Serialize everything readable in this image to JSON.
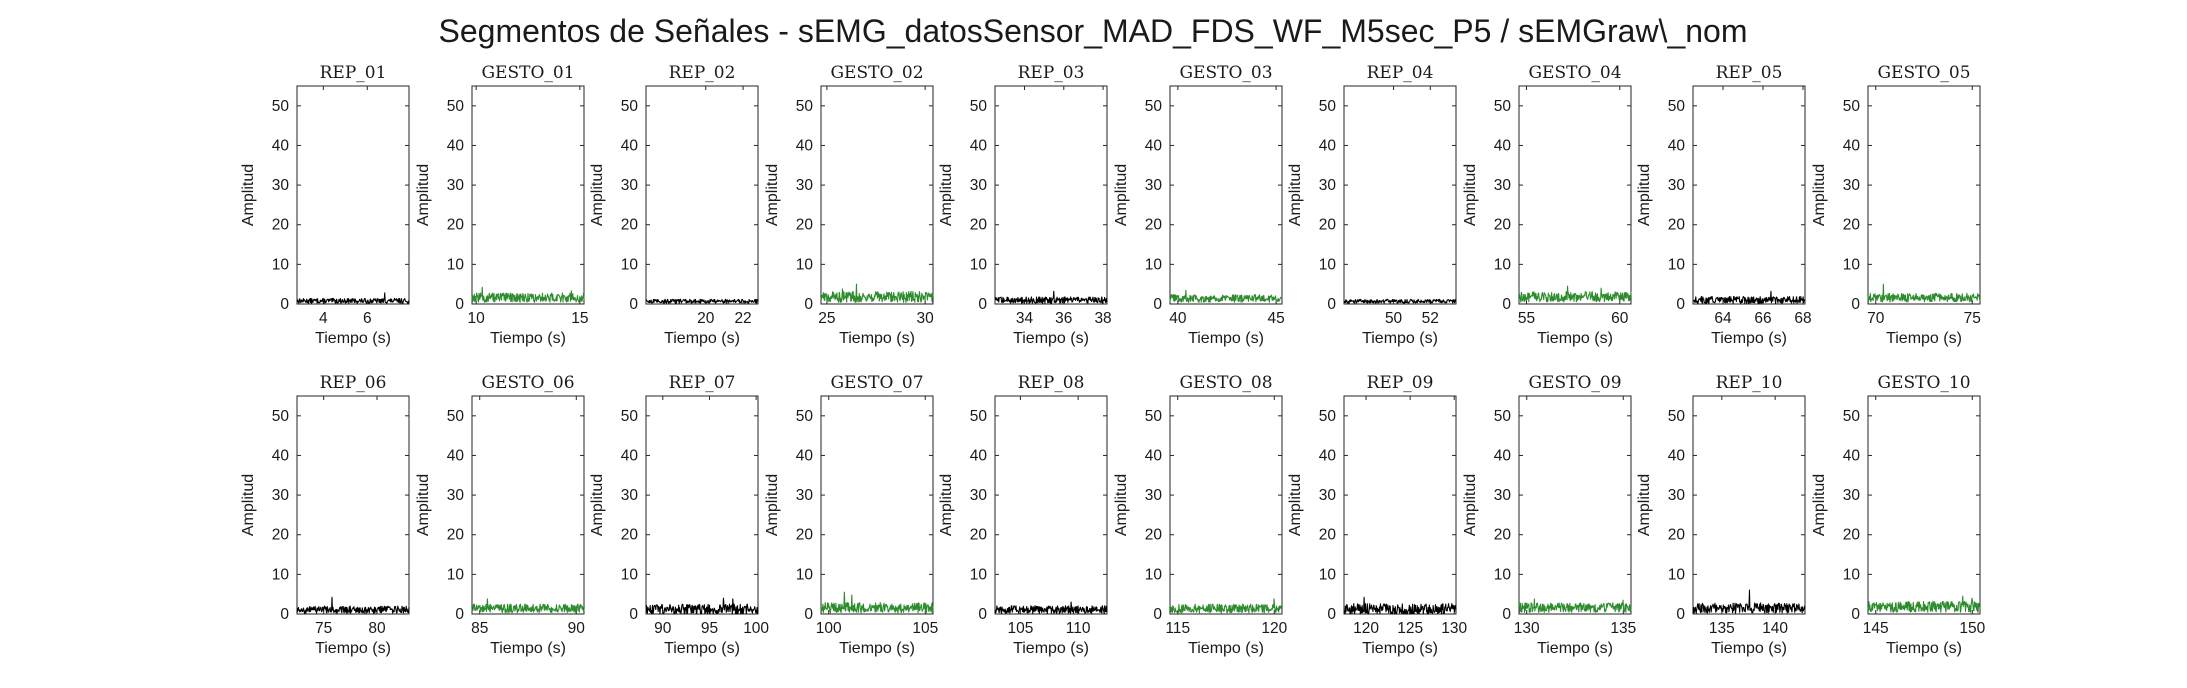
{
  "figure": {
    "title": "Segmentos de Señales - sEMG_datosSensor_MAD_FDS_WF_M5sec_P5 / sEMGraw\\_nom"
  },
  "colors": {
    "rep": "#000000",
    "gesto": "#2e8b2e",
    "axes": "#262626"
  },
  "chart_data": [
    {
      "type": "line",
      "title": "REP_01",
      "kind": "rep",
      "xlim": [
        2.8,
        7.9
      ],
      "xticks": [
        4,
        6
      ],
      "ylim": [
        0,
        55
      ],
      "yticks": [
        0,
        10,
        20,
        30,
        40,
        50
      ],
      "xlabel": "Tiempo (s)",
      "ylabel": "Amplitud",
      "series": [
        {
          "baseline": 0.8,
          "noise": 0.6,
          "peaks": [
            {
              "x": 6.8,
              "y": 2.8
            }
          ]
        }
      ]
    },
    {
      "type": "line",
      "title": "GESTO_01",
      "kind": "gesto",
      "xlim": [
        9.8,
        15.2
      ],
      "xticks": [
        10,
        15
      ],
      "ylim": [
        0,
        55
      ],
      "yticks": [
        0,
        10,
        20,
        30,
        40,
        50
      ],
      "xlabel": "Tiempo (s)",
      "ylabel": "Amplitud",
      "series": [
        {
          "baseline": 1.6,
          "noise": 1.2,
          "peaks": [
            {
              "x": 10.3,
              "y": 4.2
            },
            {
              "x": 14.6,
              "y": 3.3
            }
          ]
        }
      ]
    },
    {
      "type": "line",
      "title": "REP_02",
      "kind": "rep",
      "xlim": [
        16.8,
        22.8
      ],
      "xticks": [
        20,
        22
      ],
      "ylim": [
        0,
        55
      ],
      "yticks": [
        0,
        10,
        20,
        30,
        40,
        50
      ],
      "xlabel": "Tiempo (s)",
      "ylabel": "Amplitud",
      "series": [
        {
          "baseline": 0.7,
          "noise": 0.5,
          "peaks": []
        }
      ]
    },
    {
      "type": "line",
      "title": "GESTO_02",
      "kind": "gesto",
      "xlim": [
        24.7,
        30.4
      ],
      "xticks": [
        25,
        30
      ],
      "ylim": [
        0,
        55
      ],
      "yticks": [
        0,
        10,
        20,
        30,
        40,
        50
      ],
      "xlabel": "Tiempo (s)",
      "ylabel": "Amplitud",
      "series": [
        {
          "baseline": 1.8,
          "noise": 1.4,
          "peaks": [
            {
              "x": 26.5,
              "y": 5.0
            },
            {
              "x": 25.8,
              "y": 3.8
            }
          ]
        }
      ]
    },
    {
      "type": "line",
      "title": "REP_03",
      "kind": "rep",
      "xlim": [
        32.5,
        38.2
      ],
      "xticks": [
        34,
        36,
        38
      ],
      "ylim": [
        0,
        55
      ],
      "yticks": [
        0,
        10,
        20,
        30,
        40,
        50
      ],
      "xlabel": "Tiempo (s)",
      "ylabel": "Amplitud",
      "series": [
        {
          "baseline": 1.0,
          "noise": 0.8,
          "peaks": [
            {
              "x": 35.5,
              "y": 3.2
            }
          ]
        }
      ]
    },
    {
      "type": "line",
      "title": "GESTO_03",
      "kind": "gesto",
      "xlim": [
        39.6,
        45.3
      ],
      "xticks": [
        40,
        45
      ],
      "ylim": [
        0,
        55
      ],
      "yticks": [
        0,
        10,
        20,
        30,
        40,
        50
      ],
      "xlabel": "Tiempo (s)",
      "ylabel": "Amplitud",
      "series": [
        {
          "baseline": 1.4,
          "noise": 1.0,
          "peaks": [
            {
              "x": 40.4,
              "y": 3.5
            }
          ]
        }
      ]
    },
    {
      "type": "line",
      "title": "REP_04",
      "kind": "rep",
      "xlim": [
        47.3,
        53.4
      ],
      "xticks": [
        50,
        52
      ],
      "ylim": [
        0,
        55
      ],
      "yticks": [
        0,
        10,
        20,
        30,
        40,
        50
      ],
      "xlabel": "Tiempo (s)",
      "ylabel": "Amplitud",
      "series": [
        {
          "baseline": 0.7,
          "noise": 0.5,
          "peaks": []
        }
      ]
    },
    {
      "type": "line",
      "title": "GESTO_04",
      "kind": "gesto",
      "xlim": [
        54.6,
        60.6
      ],
      "xticks": [
        55,
        60
      ],
      "ylim": [
        0,
        55
      ],
      "yticks": [
        0,
        10,
        20,
        30,
        40,
        50
      ],
      "xlabel": "Tiempo (s)",
      "ylabel": "Amplitud",
      "series": [
        {
          "baseline": 1.8,
          "noise": 1.3,
          "peaks": [
            {
              "x": 57.2,
              "y": 4.5
            },
            {
              "x": 59.0,
              "y": 4.0
            }
          ]
        }
      ]
    },
    {
      "type": "line",
      "title": "REP_05",
      "kind": "rep",
      "xlim": [
        62.5,
        68.1
      ],
      "xticks": [
        64,
        66,
        68
      ],
      "ylim": [
        0,
        55
      ],
      "yticks": [
        0,
        10,
        20,
        30,
        40,
        50
      ],
      "xlabel": "Tiempo (s)",
      "ylabel": "Amplitud",
      "series": [
        {
          "baseline": 1.0,
          "noise": 0.9,
          "peaks": [
            {
              "x": 66.4,
              "y": 3.2
            }
          ]
        }
      ]
    },
    {
      "type": "line",
      "title": "GESTO_05",
      "kind": "gesto",
      "xlim": [
        69.6,
        75.4
      ],
      "xticks": [
        70,
        75
      ],
      "ylim": [
        0,
        55
      ],
      "yticks": [
        0,
        10,
        20,
        30,
        40,
        50
      ],
      "xlabel": "Tiempo (s)",
      "ylabel": "Amplitud",
      "series": [
        {
          "baseline": 1.6,
          "noise": 1.1,
          "peaks": [
            {
              "x": 70.4,
              "y": 5.0
            }
          ]
        }
      ]
    },
    {
      "type": "line",
      "title": "REP_06",
      "kind": "rep",
      "xlim": [
        72.5,
        83.0
      ],
      "xticks": [
        75,
        80
      ],
      "ylim": [
        0,
        55
      ],
      "yticks": [
        0,
        10,
        20,
        30,
        40,
        50
      ],
      "xlabel": "Tiempo (s)",
      "ylabel": "Amplitud",
      "series": [
        {
          "baseline": 1.1,
          "noise": 0.9,
          "peaks": [
            {
              "x": 75.8,
              "y": 4.2
            }
          ]
        }
      ]
    },
    {
      "type": "line",
      "title": "GESTO_06",
      "kind": "gesto",
      "xlim": [
        84.6,
        90.4
      ],
      "xticks": [
        85,
        90
      ],
      "ylim": [
        0,
        55
      ],
      "yticks": [
        0,
        10,
        20,
        30,
        40,
        50
      ],
      "xlabel": "Tiempo (s)",
      "ylabel": "Amplitud",
      "series": [
        {
          "baseline": 1.4,
          "noise": 1.1,
          "peaks": [
            {
              "x": 85.4,
              "y": 3.8
            }
          ]
        }
      ]
    },
    {
      "type": "line",
      "title": "REP_07",
      "kind": "rep",
      "xlim": [
        88.2,
        100.2
      ],
      "xticks": [
        90,
        95,
        100
      ],
      "ylim": [
        0,
        55
      ],
      "yticks": [
        0,
        10,
        20,
        30,
        40,
        50
      ],
      "xlabel": "Tiempo (s)",
      "ylabel": "Amplitud",
      "series": [
        {
          "baseline": 1.2,
          "noise": 1.3,
          "peaks": [
            {
              "x": 96.5,
              "y": 4.0
            },
            {
              "x": 97.5,
              "y": 3.8
            }
          ]
        }
      ]
    },
    {
      "type": "line",
      "title": "GESTO_07",
      "kind": "gesto",
      "xlim": [
        99.6,
        105.4
      ],
      "xticks": [
        100,
        105
      ],
      "ylim": [
        0,
        55
      ],
      "yticks": [
        0,
        10,
        20,
        30,
        40,
        50
      ],
      "xlabel": "Tiempo (s)",
      "ylabel": "Amplitud",
      "series": [
        {
          "baseline": 1.6,
          "noise": 1.3,
          "peaks": [
            {
              "x": 100.8,
              "y": 5.5
            },
            {
              "x": 101.2,
              "y": 4.8
            }
          ]
        }
      ]
    },
    {
      "type": "line",
      "title": "REP_08",
      "kind": "rep",
      "xlim": [
        102.8,
        112.5
      ],
      "xticks": [
        105,
        110
      ],
      "ylim": [
        0,
        55
      ],
      "yticks": [
        0,
        10,
        20,
        30,
        40,
        50
      ],
      "xlabel": "Tiempo (s)",
      "ylabel": "Amplitud",
      "series": [
        {
          "baseline": 1.1,
          "noise": 1.0,
          "peaks": [
            {
              "x": 109.4,
              "y": 3.0
            }
          ]
        }
      ]
    },
    {
      "type": "line",
      "title": "GESTO_08",
      "kind": "gesto",
      "xlim": [
        114.6,
        120.4
      ],
      "xticks": [
        115,
        120
      ],
      "ylim": [
        0,
        55
      ],
      "yticks": [
        0,
        10,
        20,
        30,
        40,
        50
      ],
      "xlabel": "Tiempo (s)",
      "ylabel": "Amplitud",
      "series": [
        {
          "baseline": 1.4,
          "noise": 1.1,
          "peaks": [
            {
              "x": 120.0,
              "y": 3.8
            }
          ]
        }
      ]
    },
    {
      "type": "line",
      "title": "REP_09",
      "kind": "rep",
      "xlim": [
        117.5,
        130.2
      ],
      "xticks": [
        120,
        125,
        130
      ],
      "ylim": [
        0,
        55
      ],
      "yticks": [
        0,
        10,
        20,
        30,
        40,
        50
      ],
      "xlabel": "Tiempo (s)",
      "ylabel": "Amplitud",
      "series": [
        {
          "baseline": 1.2,
          "noise": 1.4,
          "peaks": [
            {
              "x": 119.8,
              "y": 4.2
            }
          ]
        }
      ]
    },
    {
      "type": "line",
      "title": "GESTO_09",
      "kind": "gesto",
      "xlim": [
        129.6,
        135.4
      ],
      "xticks": [
        130,
        135
      ],
      "ylim": [
        0,
        55
      ],
      "yticks": [
        0,
        10,
        20,
        30,
        40,
        50
      ],
      "xlabel": "Tiempo (s)",
      "ylabel": "Amplitud",
      "series": [
        {
          "baseline": 1.6,
          "noise": 1.2,
          "peaks": [
            {
              "x": 130.4,
              "y": 3.8
            },
            {
              "x": 135.0,
              "y": 3.5
            }
          ]
        }
      ]
    },
    {
      "type": "line",
      "title": "REP_10",
      "kind": "rep",
      "xlim": [
        132.3,
        142.8
      ],
      "xticks": [
        135,
        140
      ],
      "ylim": [
        0,
        55
      ],
      "yticks": [
        0,
        10,
        20,
        30,
        40,
        50
      ],
      "xlabel": "Tiempo (s)",
      "ylabel": "Amplitud",
      "series": [
        {
          "baseline": 1.5,
          "noise": 1.3,
          "peaks": [
            {
              "x": 137.6,
              "y": 6.0
            }
          ]
        }
      ]
    },
    {
      "type": "line",
      "title": "GESTO_10",
      "kind": "gesto",
      "xlim": [
        144.6,
        150.4
      ],
      "xticks": [
        145,
        150
      ],
      "ylim": [
        0,
        55
      ],
      "yticks": [
        0,
        10,
        20,
        30,
        40,
        50
      ],
      "xlabel": "Tiempo (s)",
      "ylabel": "Amplitud",
      "series": [
        {
          "baseline": 1.8,
          "noise": 1.4,
          "peaks": [
            {
              "x": 149.5,
              "y": 4.5
            },
            {
              "x": 150.0,
              "y": 4.0
            }
          ]
        }
      ]
    }
  ]
}
